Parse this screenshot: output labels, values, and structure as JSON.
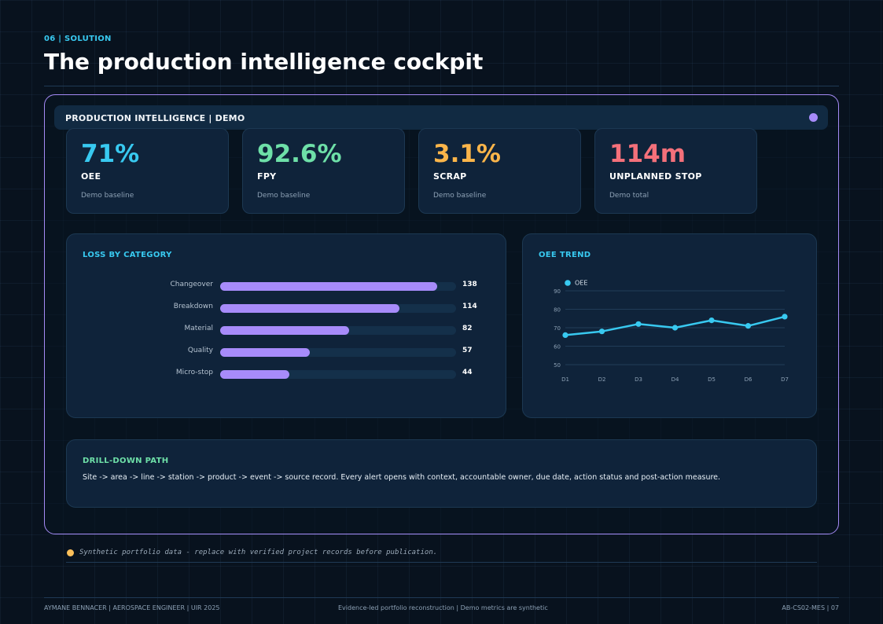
{
  "header": {
    "kicker": "06 | SOLUTION",
    "title": "The production intelligence cockpit"
  },
  "demo": {
    "bar_label": "PRODUCTION INTELLIGENCE | DEMO",
    "dot_color": "#a78bfa"
  },
  "kpis": [
    {
      "value": "71%",
      "label": "OEE",
      "note": "Demo baseline",
      "color": "#38c9f0"
    },
    {
      "value": "92.6%",
      "label": "FPY",
      "note": "Demo baseline",
      "color": "#6ee0a8"
    },
    {
      "value": "3.1%",
      "label": "SCRAP",
      "note": "Demo baseline",
      "color": "#fbb54a"
    },
    {
      "value": "114m",
      "label": "UNPLANNED STOP",
      "note": "Demo total",
      "color": "#f4707a"
    }
  ],
  "loss": {
    "title": "LOSS BY CATEGORY",
    "chart_data": {
      "type": "bar",
      "categories": [
        "Changeover",
        "Breakdown",
        "Material",
        "Quality",
        "Micro-stop"
      ],
      "values": [
        138,
        114,
        82,
        57,
        44
      ],
      "value_labels": [
        "138",
        "114",
        "82",
        "57",
        "44"
      ],
      "xlim": [
        0,
        150
      ],
      "color": "#a78bfa"
    }
  },
  "trend": {
    "title": "OEE TREND",
    "chart_data": {
      "type": "line",
      "x": [
        "D1",
        "D2",
        "D3",
        "D4",
        "D5",
        "D6",
        "D7"
      ],
      "series": [
        {
          "name": "OEE",
          "values": [
            66,
            68,
            72,
            70,
            74,
            71,
            76
          ]
        }
      ],
      "ylim": [
        50,
        90
      ],
      "yticks": [
        "50",
        "60",
        "70",
        "80",
        "90"
      ],
      "grid": true,
      "legend": "top-left",
      "color": "#38c9f0"
    }
  },
  "drill": {
    "title": "DRILL-DOWN PATH",
    "text": "Site -> area -> line -> station -> product -> event -> source record. Every alert opens with context, accountable owner, due date, action status and post-action measure."
  },
  "note": {
    "text": "Synthetic portfolio data - replace with verified project records before publication."
  },
  "footer": {
    "left": "AYMANE BENNACER | AEROSPACE ENGINEER | UIR 2025",
    "center": "Evidence-led portfolio reconstruction | Demo metrics are synthetic",
    "right": "AB-CS02-MES | 07"
  }
}
